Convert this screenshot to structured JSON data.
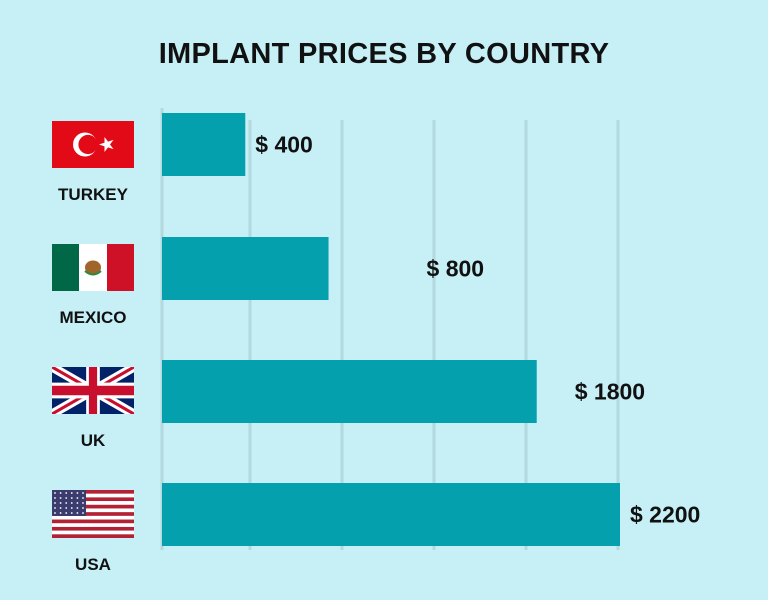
{
  "chart_data": {
    "type": "bar",
    "orientation": "horizontal",
    "title": "IMPLANT PRICES BY COUNTRY",
    "categories": [
      "TURKEY",
      "MEXICO",
      "UK",
      "USA"
    ],
    "values": [
      400,
      800,
      1800,
      2200
    ],
    "data_labels": [
      "$ 400",
      "$ 800",
      "$ 1800",
      "$ 2200"
    ],
    "unit": "$",
    "xlim": [
      0,
      2200
    ],
    "grid": true,
    "legend": "none",
    "flag_icons": [
      "turkey-flag-icon",
      "mexico-flag-icon",
      "uk-flag-icon",
      "usa-flag-icon"
    ]
  },
  "colors": {
    "background": "#c6f0f6",
    "bar": "#04a0ad",
    "grid": "#b3d9df",
    "text": "#111111"
  }
}
